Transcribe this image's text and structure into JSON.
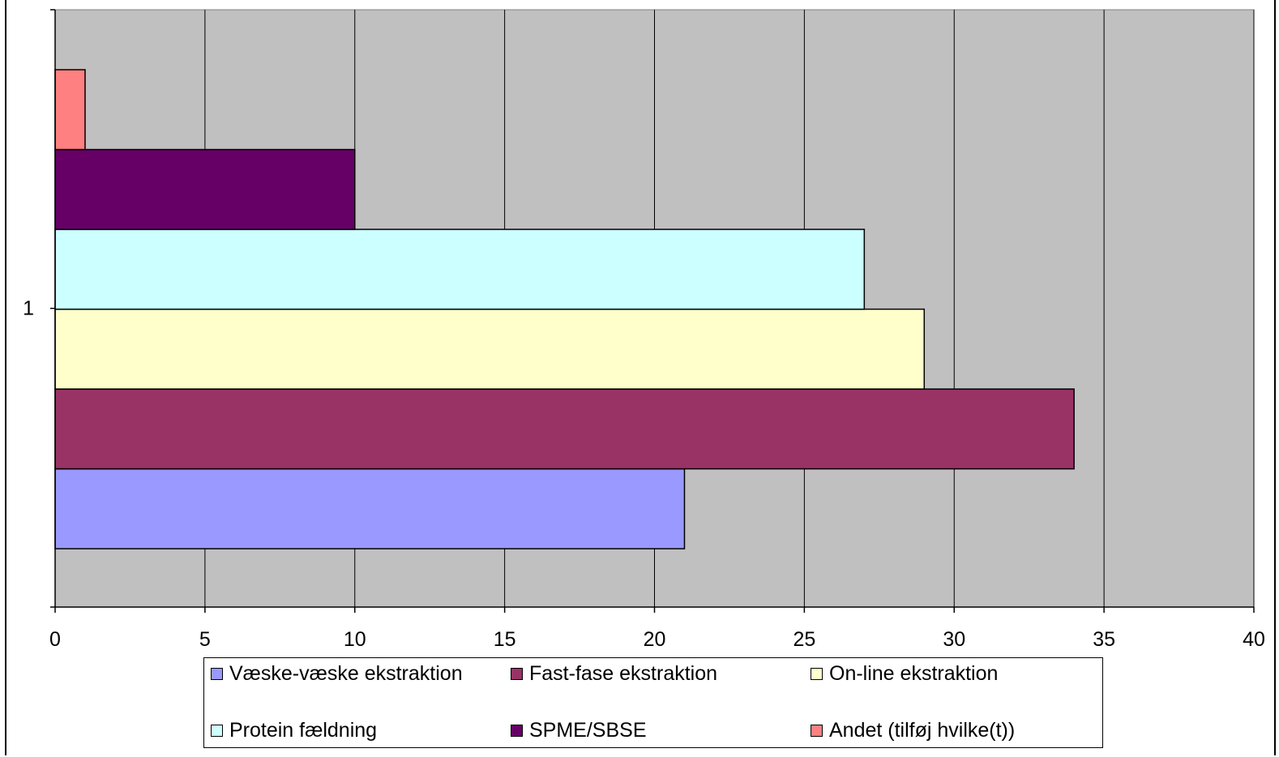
{
  "chart_data": {
    "type": "bar",
    "orientation": "horizontal",
    "categories": [
      "1"
    ],
    "xlim": [
      0,
      40
    ],
    "x_ticks": [
      0,
      5,
      10,
      15,
      20,
      25,
      30,
      35,
      40
    ],
    "grid": true,
    "plot_background": "#c0c0c0",
    "legend_position": "bottom",
    "series": [
      {
        "name": "Væske-væske ekstraktion",
        "values": [
          21
        ],
        "color": "#9999ff"
      },
      {
        "name": "Fast-fase ekstraktion",
        "values": [
          34
        ],
        "color": "#993366"
      },
      {
        "name": "On-line ekstraktion",
        "values": [
          29
        ],
        "color": "#ffffcc"
      },
      {
        "name": "Protein fældning",
        "values": [
          27
        ],
        "color": "#ccffff"
      },
      {
        "name": "SPME/SBSE",
        "values": [
          10
        ],
        "color": "#660066"
      },
      {
        "name": "Andet (tilføj hvilke(t))",
        "values": [
          1
        ],
        "color": "#ff8080"
      }
    ]
  }
}
